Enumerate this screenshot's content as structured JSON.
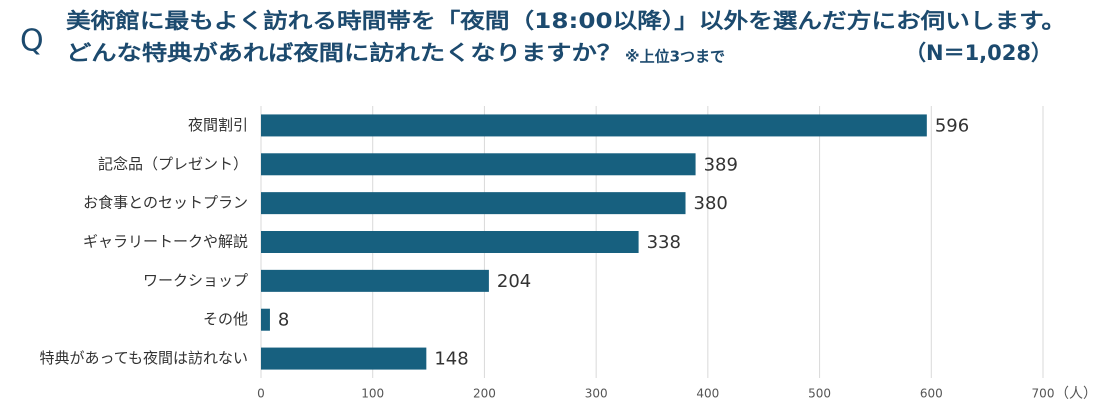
{
  "chart_data": {
    "type": "bar",
    "orientation": "horizontal",
    "question_mark": "Q",
    "title": "美術館に最もよく訪れる時間帯を「夜間（18:00以降）」以外を選んだ方にお伺いします。",
    "subtitle": "どんな特典があれば夜間に訪れたくなりますか？",
    "note": "※上位3つまで",
    "sample_size": "（N＝1,028）",
    "unit_label": "（人）",
    "categories": [
      "夜間割引",
      "記念品（プレゼント）",
      "お食事とのセットプラン",
      "ギャラリートークや解説",
      "ワークショップ",
      "その他",
      "特典があっても夜間は訪れない"
    ],
    "values": [
      596,
      389,
      380,
      338,
      204,
      8,
      148
    ],
    "color": "#17607f",
    "xlim": [
      0,
      700
    ],
    "xticks": [
      0,
      100,
      200,
      300,
      400,
      500,
      600,
      700
    ],
    "grid": true
  }
}
